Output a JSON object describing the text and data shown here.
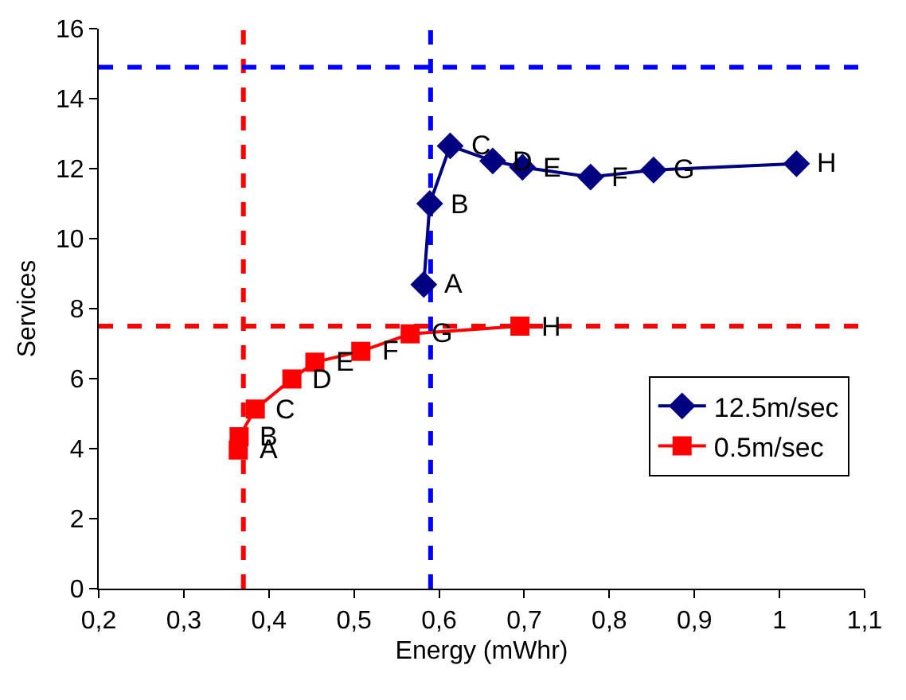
{
  "chart_data": {
    "type": "line",
    "xlabel": "Energy (mWhr)",
    "ylabel": "Services",
    "series": [
      {
        "name": "12.5m/sec",
        "color": "#000080",
        "marker": "diamond",
        "x": [
          0.582,
          0.589,
          0.613,
          0.663,
          0.698,
          0.778,
          0.852,
          1.02
        ],
        "values": [
          8.69,
          11.0,
          12.65,
          12.22,
          12.04,
          11.76,
          11.96,
          12.14
        ]
      },
      {
        "name": "0.5m/sec",
        "color": "#ff0000",
        "marker": "square",
        "x": [
          0.364,
          0.365,
          0.384,
          0.427,
          0.454,
          0.508,
          0.566,
          0.695
        ],
        "values": [
          3.96,
          4.34,
          5.13,
          5.99,
          6.47,
          6.78,
          7.28,
          7.5
        ]
      }
    ],
    "annotations": [
      {
        "text": "A",
        "x": 0.582,
        "y": 8.69
      },
      {
        "text": "B",
        "x": 0.589,
        "y": 11.0
      },
      {
        "text": "C",
        "x": 0.613,
        "y": 12.65
      },
      {
        "text": "D",
        "x": 0.663,
        "y": 12.22
      },
      {
        "text": "E",
        "x": 0.698,
        "y": 12.04
      },
      {
        "text": "F",
        "x": 0.778,
        "y": 11.76
      },
      {
        "text": "G",
        "x": 0.852,
        "y": 11.96
      },
      {
        "text": "H",
        "x": 1.02,
        "y": 12.14
      },
      {
        "text": "A",
        "x": 0.364,
        "y": 3.96
      },
      {
        "text": "B",
        "x": 0.365,
        "y": 4.34
      },
      {
        "text": "C",
        "x": 0.384,
        "y": 5.13
      },
      {
        "text": "D",
        "x": 0.427,
        "y": 5.99
      },
      {
        "text": "E",
        "x": 0.454,
        "y": 6.47
      },
      {
        "text": "F",
        "x": 0.508,
        "y": 6.78
      },
      {
        "text": "G",
        "x": 0.566,
        "y": 7.28
      },
      {
        "text": "H",
        "x": 0.695,
        "y": 7.5
      }
    ],
    "ref_lines": [
      {
        "axis": "x",
        "value": 0.37,
        "color": "#ff0000",
        "line_style": "dashed"
      },
      {
        "axis": "x",
        "value": 0.59,
        "color": "#0000ff",
        "line_style": "dashed"
      },
      {
        "axis": "y",
        "value": 14.9,
        "color": "#0000ff",
        "line_style": "dashed"
      },
      {
        "axis": "y",
        "value": 7.5,
        "color": "#ff0000",
        "line_style": "dashed"
      }
    ],
    "xlim": [
      0.2,
      1.1
    ],
    "xticks": [
      {
        "value": 0.2,
        "label": "0,2"
      },
      {
        "value": 0.3,
        "label": "0,3"
      },
      {
        "value": 0.4,
        "label": "0,4"
      },
      {
        "value": 0.5,
        "label": "0,5"
      },
      {
        "value": 0.6,
        "label": "0,6"
      },
      {
        "value": 0.7,
        "label": "0,7"
      },
      {
        "value": 0.8,
        "label": "0,8"
      },
      {
        "value": 0.9,
        "label": "0,9"
      },
      1,
      {
        "value": 1.1,
        "label": "1,1"
      }
    ],
    "ylim": [
      0,
      16
    ],
    "yticks": [
      0,
      2,
      4,
      6,
      8,
      10,
      12,
      14,
      16
    ],
    "grid": false,
    "legend": "bottom right",
    "line_style": "solid"
  }
}
